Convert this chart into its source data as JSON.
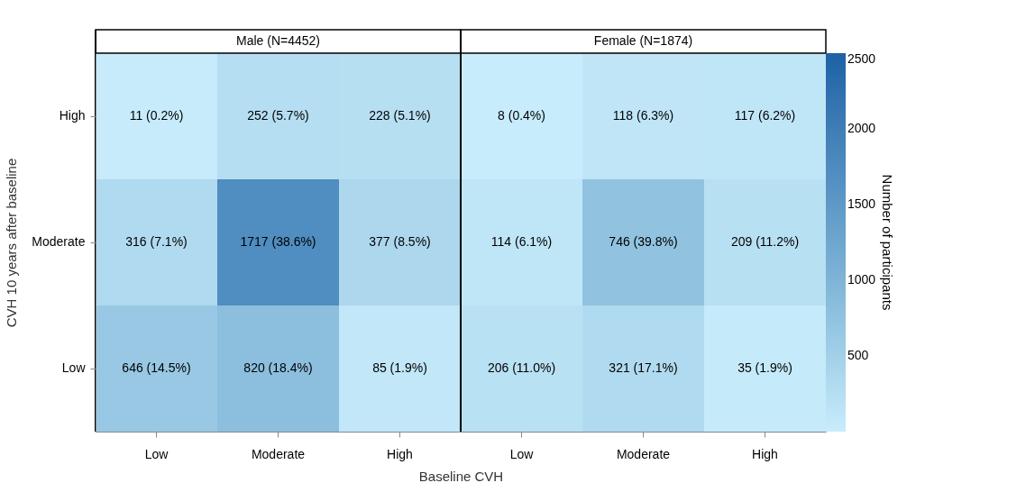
{
  "chart_data": {
    "type": "heatmap",
    "xlabel": "Baseline CVH",
    "ylabel": "CVH 10 years after baseline",
    "annotations": [
      "Male (N=4452)",
      "Female (N=1874)"
    ],
    "categories": [
      "Low",
      "Moderate",
      "High",
      "Low",
      "Moderate",
      "High"
    ],
    "y_categories": [
      "High",
      "Moderate",
      "Low"
    ],
    "cells": [
      [
        11,
        252,
        228,
        8,
        118,
        117
      ],
      [
        316,
        1717,
        377,
        114,
        746,
        209
      ],
      [
        646,
        820,
        85,
        206,
        321,
        35
      ]
    ],
    "cell_labels": [
      [
        "11 (0.2%)",
        "252 (5.7%)",
        "228 (5.1%)",
        "8 (0.4%)",
        "118 (6.3%)",
        "117 (6.2%)"
      ],
      [
        "316 (7.1%)",
        "1717 (38.6%)",
        "377 (8.5%)",
        "114 (6.1%)",
        "746 (39.8%)",
        "209 (11.2%)"
      ],
      [
        "646 (14.5%)",
        "820 (18.4%)",
        "85 (1.9%)",
        "206 (11.0%)",
        "321 (17.1%)",
        "35 (1.9%)"
      ]
    ],
    "clim": [
      0,
      2500
    ],
    "cticks": [
      500,
      1000,
      1500,
      2000,
      2500
    ],
    "clabel": "Number of participants"
  }
}
